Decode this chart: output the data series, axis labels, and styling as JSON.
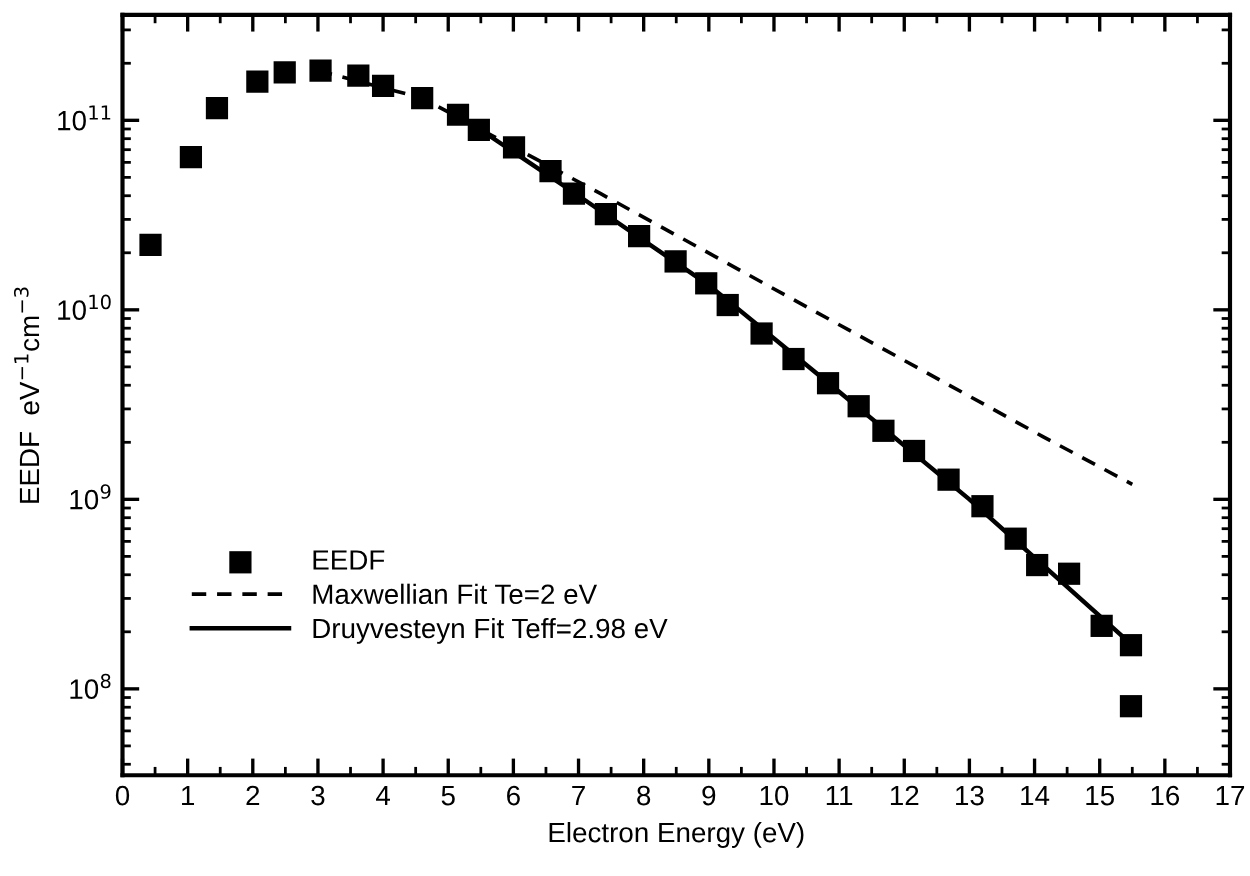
{
  "chart_data": {
    "type": "scatter",
    "xlabel": "Electron Energy (eV)",
    "ylabel": "EEDF  eV$^{−1}$cm$^{−3}$",
    "log": "y",
    "xlim": [
      0,
      17
    ],
    "ylim": [
      35000000.0,
      360000000000.0
    ],
    "xticks": [
      0,
      1,
      2,
      3,
      4,
      5,
      6,
      7,
      8,
      9,
      10,
      11,
      12,
      13,
      14,
      15,
      16,
      17
    ],
    "yticks": [
      {
        "value": 100000000.0,
        "label": "10$^{8}$"
      },
      {
        "value": 1000000000.0,
        "label": "10$^{9}$"
      },
      {
        "value": 10000000000.0,
        "label": "10$^{10}$"
      },
      {
        "value": 100000000000.0,
        "label": "10$^{11}$"
      }
    ],
    "grid": false,
    "legend": "bottom left",
    "series": [
      {
        "name": "EEDF",
        "marker": "square",
        "color": "#000000",
        "x": [
          0.43,
          1.05,
          1.45,
          2.07,
          2.49,
          3.04,
          3.62,
          4.0,
          4.6,
          5.15,
          5.47,
          6.01,
          6.57,
          6.93,
          7.42,
          7.93,
          8.49,
          8.96,
          9.29,
          9.81,
          10.3,
          10.83,
          11.3,
          11.68,
          12.15,
          12.68,
          13.2,
          13.71,
          14.04,
          14.53,
          15.03,
          15.48,
          15.48
        ],
        "values": [
          22000000000.0,
          64000000000.0,
          116000000000.0,
          160000000000.0,
          179000000000.0,
          183000000000.0,
          172000000000.0,
          152000000000.0,
          131000000000.0,
          107000000000.0,
          89000000000.0,
          72000000000.0,
          54000000000.0,
          41000000000.0,
          32000000000.0,
          24500000000.0,
          18000000000.0,
          13800000000.0,
          10600000000.0,
          7500000000.0,
          5500000000.0,
          4100000000.0,
          3100000000.0,
          2300000000.0,
          1800000000.0,
          1270000000.0,
          920000000.0,
          620000000.0,
          450000000.0,
          405000000.0,
          215000000.0,
          170000000.0,
          81000000.0
        ]
      },
      {
        "name": "Maxwellian Fit Te=2 eV",
        "type": "line",
        "line_style": "dashed",
        "color": "#000000",
        "x": [
          3.0,
          4.6,
          7.34,
          14.12,
          15.5
        ],
        "values": [
          183000000000.0,
          131000000000.0,
          41000000000.0,
          2150000000.0,
          1200000000.0
        ]
      },
      {
        "name": "Druyvesteyn Fit Teff=2.98 eV",
        "type": "line",
        "line_style": "solid",
        "color": "#000000",
        "x": [
          5.1,
          7.0,
          9.0,
          11.0,
          13.0,
          15.5
        ],
        "values": [
          110000000000.0,
          40000000000.0,
          13500000000.0,
          3700000000.0,
          1000000000.0,
          170000000.0
        ]
      }
    ]
  }
}
